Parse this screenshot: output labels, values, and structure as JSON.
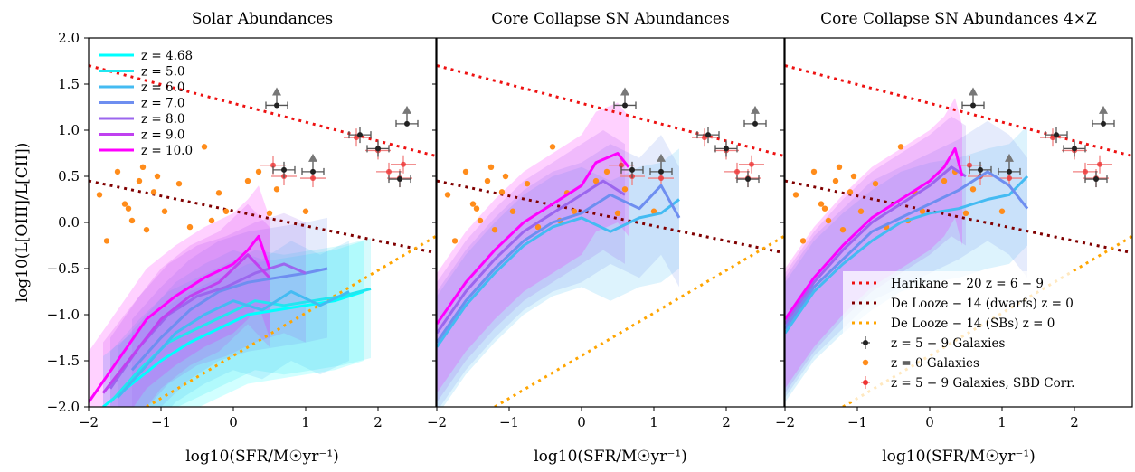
{
  "chart_data": [
    {
      "type": "line",
      "title": "Solar Abundances",
      "xlabel": "log10(SFR/M☉yr⁻¹)",
      "ylabel": "log10(L[OIII]/L[CII])",
      "xlim": [
        -2,
        2.8
      ],
      "ylim": [
        -2,
        2
      ],
      "xticks": [
        "−2",
        "−1",
        "0",
        "1",
        "2"
      ],
      "yticks": [
        "2.0",
        "1.5",
        "1.0",
        "0.5",
        "0.0",
        "−0.5",
        "−1.0",
        "−1.5",
        "−2.0"
      ],
      "legend_position": "upper-left",
      "series": [
        {
          "name": "z = 4.68",
          "color": "#00ffff",
          "x": [
            -1.8,
            -1.4,
            -1.0,
            -0.6,
            -0.2,
            0.2,
            0.6,
            1.0,
            1.4,
            1.8
          ],
          "y": [
            -2.0,
            -1.75,
            -1.5,
            -1.3,
            -1.15,
            -1.0,
            -0.95,
            -0.9,
            -0.85,
            -0.75
          ]
        },
        {
          "name": "z = 5.0",
          "color": "#22e6f0",
          "x": [
            -1.7,
            -1.3,
            -0.9,
            -0.5,
            -0.1,
            0.3,
            0.7,
            1.1,
            1.5,
            1.9
          ],
          "y": [
            -1.95,
            -1.6,
            -1.3,
            -1.15,
            -1.0,
            -0.85,
            -0.9,
            -0.85,
            -0.8,
            -0.72
          ]
        },
        {
          "name": "z = 6.0",
          "color": "#44bbf2",
          "x": [
            -1.6,
            -1.2,
            -0.8,
            -0.4,
            0.0,
            0.4,
            0.8,
            1.2,
            1.6
          ],
          "y": [
            -1.9,
            -1.55,
            -1.2,
            -1.0,
            -0.85,
            -0.95,
            -0.75,
            -0.9,
            -0.75
          ]
        },
        {
          "name": "z = 7.0",
          "color": "#6e8ef0",
          "x": [
            -1.4,
            -1.0,
            -0.6,
            -0.2,
            0.2,
            0.6,
            1.0,
            1.3
          ],
          "y": [
            -1.6,
            -1.25,
            -0.95,
            -0.75,
            -0.65,
            -0.6,
            -0.55,
            -0.5
          ]
        },
        {
          "name": "z = 8.0",
          "color": "#9b66ee",
          "x": [
            -1.7,
            -1.3,
            -0.9,
            -0.5,
            -0.1,
            0.3,
            0.7,
            1.0
          ],
          "y": [
            -1.8,
            -1.35,
            -1.0,
            -0.8,
            -0.7,
            -0.55,
            -0.45,
            -0.55
          ]
        },
        {
          "name": "z = 9.0",
          "color": "#c040f0",
          "x": [
            -1.8,
            -1.4,
            -1.0,
            -0.6,
            -0.2,
            0.2,
            0.5
          ],
          "y": [
            -1.85,
            -1.45,
            -1.05,
            -0.8,
            -0.65,
            -0.35,
            -0.6
          ]
        },
        {
          "name": "z = 10.0",
          "color": "#ff00ff",
          "x": [
            -2.0,
            -1.6,
            -1.2,
            -0.8,
            -0.4,
            0.0,
            0.2,
            0.35,
            0.5
          ],
          "y": [
            -1.95,
            -1.5,
            -1.05,
            -0.8,
            -0.6,
            -0.45,
            -0.3,
            -0.15,
            -0.5
          ]
        }
      ]
    },
    {
      "type": "line",
      "title": "Core Collapse SN Abundances",
      "xlabel": "log10(SFR/M☉yr⁻¹)",
      "xlim": [
        -2,
        2.8
      ],
      "ylim": [
        -2,
        2
      ],
      "xticks": [
        "−2",
        "−1",
        "0",
        "1",
        "2"
      ],
      "series": [
        {
          "name": "z = 6.0",
          "color": "#44bbf2",
          "x": [
            -2.0,
            -1.6,
            -1.2,
            -0.8,
            -0.4,
            0.0,
            0.4,
            0.8,
            1.1,
            1.35
          ],
          "y": [
            -1.35,
            -0.9,
            -0.55,
            -0.25,
            -0.05,
            0.05,
            -0.1,
            0.05,
            0.1,
            0.25
          ]
        },
        {
          "name": "z = 7.0",
          "color": "#6e8ef0",
          "x": [
            -2.0,
            -1.6,
            -1.2,
            -0.8,
            -0.4,
            0.0,
            0.4,
            0.8,
            1.1,
            1.35
          ],
          "y": [
            -1.3,
            -0.85,
            -0.5,
            -0.2,
            0.0,
            0.1,
            0.3,
            0.15,
            0.4,
            0.05
          ]
        },
        {
          "name": "z = 8.0",
          "color": "#9b66ee",
          "x": [
            -2.0,
            -1.6,
            -1.2,
            -0.8,
            -0.4,
            0.0,
            0.3,
            0.6
          ],
          "y": [
            -1.2,
            -0.75,
            -0.4,
            -0.1,
            0.1,
            0.3,
            0.45,
            0.3
          ]
        },
        {
          "name": "z = 10.0",
          "color": "#ff00ff",
          "x": [
            -2.0,
            -1.6,
            -1.2,
            -0.8,
            -0.4,
            0.0,
            0.2,
            0.5,
            0.65
          ],
          "y": [
            -1.1,
            -0.65,
            -0.3,
            0.0,
            0.2,
            0.4,
            0.65,
            0.75,
            0.6
          ]
        }
      ]
    },
    {
      "type": "line",
      "title": "Core Collapse SN Abundances 4×Z",
      "xlabel": "log10(SFR/M☉yr⁻¹)",
      "xlim": [
        -2,
        2.8
      ],
      "ylim": [
        -2,
        2
      ],
      "xticks": [
        "−2",
        "−1",
        "0",
        "1",
        "2"
      ],
      "legend_position": "lower-right",
      "series": [
        {
          "name": "z = 6.0",
          "color": "#44bbf2",
          "x": [
            -2.0,
            -1.6,
            -1.2,
            -0.8,
            -0.4,
            0.0,
            0.4,
            0.8,
            1.1,
            1.35
          ],
          "y": [
            -1.2,
            -0.75,
            -0.45,
            -0.2,
            0.0,
            0.1,
            0.15,
            0.25,
            0.3,
            0.5
          ]
        },
        {
          "name": "z = 7.0",
          "color": "#6e8ef0",
          "x": [
            -2.0,
            -1.6,
            -1.2,
            -0.8,
            -0.4,
            0.0,
            0.4,
            0.8,
            1.1,
            1.35
          ],
          "y": [
            -1.15,
            -0.7,
            -0.4,
            -0.1,
            0.05,
            0.2,
            0.35,
            0.55,
            0.4,
            0.15
          ]
        },
        {
          "name": "z = 8.0",
          "color": "#9b66ee",
          "x": [
            -2.0,
            -1.6,
            -1.2,
            -0.8,
            -0.4,
            0.0,
            0.3,
            0.5
          ],
          "y": [
            -1.1,
            -0.65,
            -0.3,
            0.0,
            0.2,
            0.4,
            0.6,
            0.5
          ]
        },
        {
          "name": "z = 10.0",
          "color": "#ff00ff",
          "x": [
            -2.0,
            -1.6,
            -1.2,
            -0.8,
            -0.4,
            0.0,
            0.2,
            0.35,
            0.45
          ],
          "y": [
            -1.05,
            -0.6,
            -0.25,
            0.05,
            0.25,
            0.45,
            0.6,
            0.8,
            0.5
          ]
        }
      ]
    }
  ],
  "reference_lines": [
    {
      "name": "Harikane − 20 z = 6 − 9",
      "color": "#ee1111",
      "x": [
        -2.0,
        2.8
      ],
      "y": [
        1.7,
        0.72
      ]
    },
    {
      "name": "De Looze − 14 (dwarfs) z = 0",
      "color": "#800000",
      "x": [
        -2.0,
        2.8
      ],
      "y": [
        0.45,
        -0.33
      ]
    },
    {
      "name": "De Looze − 14 (SBs) z = 0",
      "color": "#ffa500",
      "x": [
        -1.2,
        2.8
      ],
      "y": [
        -2.0,
        -0.15
      ]
    }
  ],
  "observations": {
    "high_z_galaxies": {
      "name": "z = 5 − 9 Galaxies",
      "points": [
        {
          "x": 0.6,
          "y": 1.27,
          "lower_limit": true
        },
        {
          "x": 1.75,
          "y": 0.95
        },
        {
          "x": 2.4,
          "y": 1.07,
          "lower_limit": true
        },
        {
          "x": 0.7,
          "y": 0.57
        },
        {
          "x": 1.1,
          "y": 0.55,
          "lower_limit": true
        },
        {
          "x": 2.0,
          "y": 0.8
        },
        {
          "x": 2.3,
          "y": 0.47
        }
      ]
    },
    "z0_galaxies": {
      "name": "z = 0 Galaxies",
      "color": "#ff8c1a",
      "points": [
        {
          "x": -1.85,
          "y": 0.3
        },
        {
          "x": -1.6,
          "y": 0.55
        },
        {
          "x": -1.5,
          "y": 0.2
        },
        {
          "x": -1.45,
          "y": 0.15
        },
        {
          "x": -1.4,
          "y": 0.02
        },
        {
          "x": -1.3,
          "y": 0.45
        },
        {
          "x": -1.2,
          "y": -0.08
        },
        {
          "x": -1.1,
          "y": 0.33
        },
        {
          "x": -1.05,
          "y": 0.5
        },
        {
          "x": -0.95,
          "y": 0.12
        },
        {
          "x": -0.75,
          "y": 0.42
        },
        {
          "x": -0.6,
          "y": -0.05
        },
        {
          "x": -0.4,
          "y": 0.82
        },
        {
          "x": -0.2,
          "y": 0.32
        },
        {
          "x": -0.1,
          "y": 0.12
        },
        {
          "x": 0.2,
          "y": 0.45
        },
        {
          "x": 0.35,
          "y": 0.55
        },
        {
          "x": 0.5,
          "y": 0.1
        },
        {
          "x": -1.75,
          "y": -0.2
        },
        {
          "x": -1.25,
          "y": 0.6
        },
        {
          "x": 0.6,
          "y": 0.36
        },
        {
          "x": 1.0,
          "y": 0.12
        },
        {
          "x": -0.3,
          "y": 0.02
        }
      ]
    },
    "high_z_sbd_corr": {
      "name": "z = 5 − 9 Galaxies, SBD Corr.",
      "color": "#ee3333",
      "points": [
        {
          "x": 0.55,
          "y": 0.62
        },
        {
          "x": 0.7,
          "y": 0.5
        },
        {
          "x": 1.1,
          "y": 0.48
        },
        {
          "x": 1.7,
          "y": 0.92
        },
        {
          "x": 2.0,
          "y": 0.78
        },
        {
          "x": 2.15,
          "y": 0.55
        },
        {
          "x": 2.35,
          "y": 0.63
        },
        {
          "x": 2.3,
          "y": 0.48
        }
      ]
    }
  },
  "legend_left": [
    "z = 4.68",
    "z = 5.0",
    "z = 6.0",
    "z = 7.0",
    "z = 8.0",
    "z = 9.0",
    "z = 10.0"
  ],
  "legend_right": [
    "Harikane − 20 z = 6 − 9",
    "De Looze − 14 (dwarfs) z = 0",
    "De Looze − 14 (SBs) z = 0",
    "z = 5 − 9 Galaxies",
    "z = 0 Galaxies",
    "z = 5 − 9 Galaxies, SBD Corr."
  ]
}
